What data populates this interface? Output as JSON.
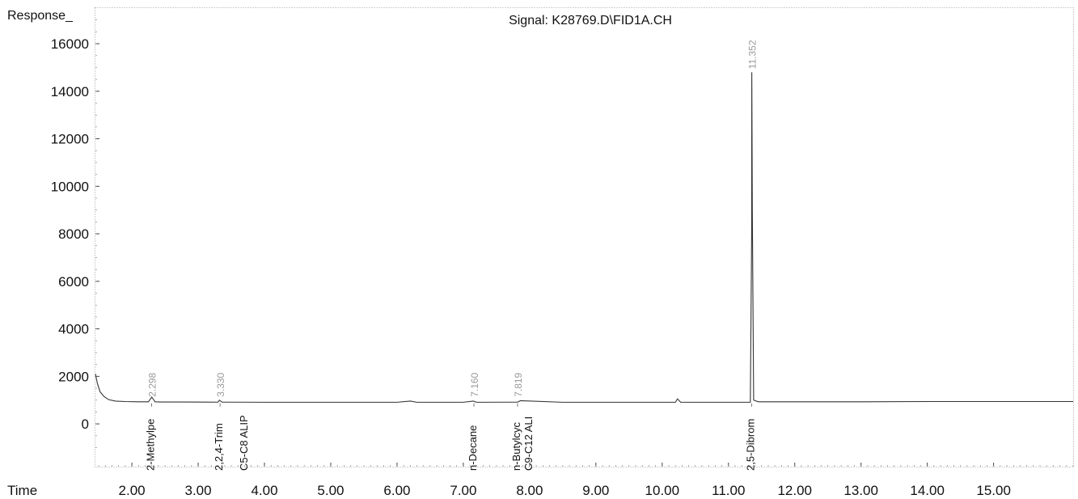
{
  "chart_data": {
    "type": "line",
    "title": "Signal: K28769.D\\FID1A.CH",
    "ylabel": "Response_",
    "xlabel": "Time",
    "xlim": [
      1.45,
      16.2
    ],
    "ylim": [
      -1800,
      17500
    ],
    "x_ticks": [
      {
        "value": 2,
        "label": "2.00"
      },
      {
        "value": 3,
        "label": "3.00"
      },
      {
        "value": 4,
        "label": "4.00"
      },
      {
        "value": 5,
        "label": "5.00"
      },
      {
        "value": 6,
        "label": "6.00"
      },
      {
        "value": 7,
        "label": "7.00"
      },
      {
        "value": 8,
        "label": "8.00"
      },
      {
        "value": 9,
        "label": "9.00"
      },
      {
        "value": 10,
        "label": "10.00"
      },
      {
        "value": 11,
        "label": "11.00"
      },
      {
        "value": 12,
        "label": "12.00"
      },
      {
        "value": 13,
        "label": "13.00"
      },
      {
        "value": 14,
        "label": "14.00"
      },
      {
        "value": 15,
        "label": "15.00"
      }
    ],
    "y_ticks": [
      {
        "value": 0,
        "label": "0"
      },
      {
        "value": 2000,
        "label": "2000"
      },
      {
        "value": 4000,
        "label": "4000"
      },
      {
        "value": 6000,
        "label": "6000"
      },
      {
        "value": 8000,
        "label": "8000"
      },
      {
        "value": 10000,
        "label": "10000"
      },
      {
        "value": 12000,
        "label": "12000"
      },
      {
        "value": 14000,
        "label": "14000"
      },
      {
        "value": 16000,
        "label": "16000"
      }
    ],
    "series": [
      {
        "x": [
          1.45,
          1.48,
          1.52,
          1.58,
          1.65,
          1.75,
          1.9,
          2.1,
          2.25,
          2.3,
          2.35,
          2.45,
          2.8,
          3.3,
          3.32,
          3.36,
          3.5,
          4.0,
          5.0,
          6.0,
          6.2,
          6.3,
          7.0,
          7.15,
          7.2,
          7.82,
          7.86,
          8.5,
          9.5,
          10.2,
          10.23,
          10.28,
          11.0,
          11.33,
          11.35,
          11.352,
          11.36,
          11.38,
          11.45,
          12.0,
          13.0,
          14.0,
          15.0,
          16.2
        ],
        "y": [
          2100,
          1700,
          1350,
          1150,
          1020,
          960,
          940,
          930,
          930,
          1130,
          930,
          920,
          920,
          915,
          1000,
          915,
          915,
          910,
          910,
          910,
          960,
          910,
          910,
          960,
          910,
          915,
          975,
          910,
          910,
          910,
          1050,
          910,
          910,
          910,
          8000,
          14800,
          9000,
          1000,
          930,
          930,
          930,
          940,
          940,
          940
        ]
      }
    ],
    "peaks": [
      {
        "rt": 2.298,
        "label": "2.298",
        "compound": "2-Methylpe"
      },
      {
        "rt": 3.33,
        "label": "3.330",
        "compound": "2,2,4-Trim"
      },
      {
        "rt": 7.16,
        "label": "7.160",
        "compound": "n-Decane"
      },
      {
        "rt": 7.819,
        "label": "7.819",
        "compound": "n-Butylcyc"
      },
      {
        "rt": 11.352,
        "label": "11.352",
        "compound": "2,5-Dibrom"
      }
    ],
    "range_labels": [
      {
        "x": 3.68,
        "label": "C5-C8 ALIP"
      },
      {
        "x": 7.98,
        "label": "C9-C12 ALI"
      }
    ],
    "grid": false,
    "legend": "none"
  }
}
